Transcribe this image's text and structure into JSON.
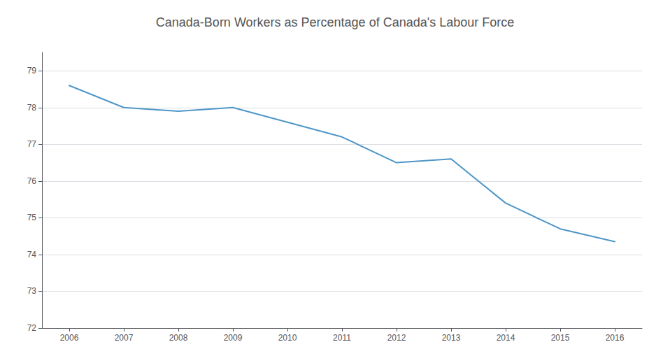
{
  "chart_data": {
    "type": "line",
    "title": "Canada-Born Workers as Percentage of Canada's Labour Force",
    "x": [
      2006,
      2007,
      2008,
      2009,
      2010,
      2011,
      2012,
      2013,
      2014,
      2015,
      2016
    ],
    "values": [
      78.6,
      78.0,
      77.9,
      78.0,
      77.6,
      77.2,
      76.5,
      76.6,
      75.4,
      74.7,
      74.35
    ],
    "color": "#4e96c8",
    "xlim": [
      2005.5,
      2016.5
    ],
    "xticks": [
      2006,
      2007,
      2008,
      2009,
      2010,
      2011,
      2012,
      2013,
      2014,
      2015,
      2016
    ],
    "ylim": [
      72,
      79.5
    ],
    "yticks": [
      72,
      73,
      74,
      75,
      76,
      77,
      78,
      79
    ],
    "grid": true
  }
}
